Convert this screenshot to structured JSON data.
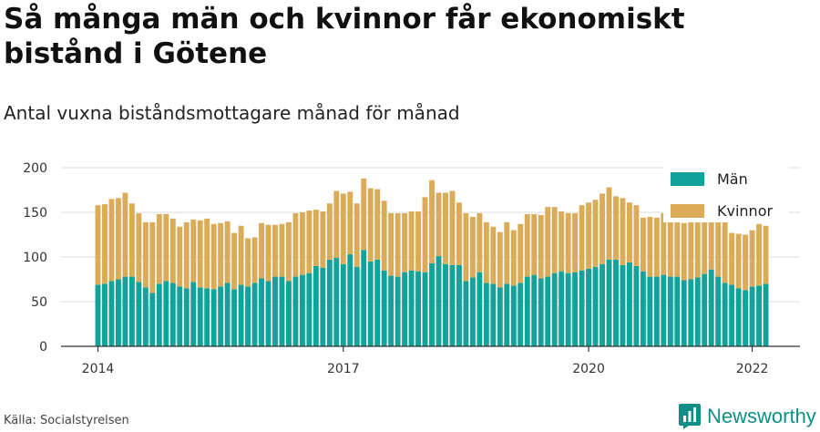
{
  "header": {
    "title": "Så många män och kvinnor får ekonomiskt bistånd i Götene",
    "subtitle": "Antal vuxna biståndsmottagare månad för månad"
  },
  "footer": {
    "source": "Källa: Socialstyrelsen",
    "brand": "Newsworthy"
  },
  "colors": {
    "man": "#11a39a",
    "kvinnor": "#dcab58",
    "grid": "#dddddd",
    "axis": "#333333",
    "brand": "#0f8f86"
  },
  "chart_data": {
    "type": "bar",
    "stacked": true,
    "x_start": "2014-01",
    "x_unit": "month",
    "ylim": [
      0,
      200
    ],
    "yticks": [
      0,
      50,
      100,
      150,
      200
    ],
    "xticks": [
      "2014",
      "2017",
      "2020",
      "2022"
    ],
    "grid": true,
    "legend_position": "top-right",
    "series": [
      {
        "name": "Män",
        "values": [
          69,
          70,
          73,
          75,
          78,
          78,
          72,
          66,
          60,
          70,
          73,
          71,
          67,
          65,
          72,
          66,
          65,
          64,
          67,
          71,
          64,
          69,
          67,
          71,
          76,
          73,
          78,
          78,
          73,
          78,
          80,
          82,
          90,
          88,
          97,
          99,
          92,
          103,
          89,
          108,
          95,
          97,
          85,
          79,
          78,
          83,
          85,
          84,
          83,
          93,
          101,
          92,
          91,
          91,
          73,
          77,
          83,
          71,
          70,
          66,
          70,
          68,
          71,
          78,
          80,
          76,
          78,
          82,
          84,
          82,
          83,
          85,
          87,
          89,
          92,
          97,
          97,
          91,
          94,
          90,
          84,
          78,
          78,
          80,
          78,
          78,
          74,
          75,
          77,
          81,
          86,
          78,
          71,
          69,
          65,
          63,
          67,
          68,
          70
        ],
        "color": "#11a39a"
      },
      {
        "name": "Kvinnor",
        "values": [
          89,
          89,
          92,
          91,
          94,
          82,
          77,
          73,
          79,
          78,
          75,
          72,
          67,
          74,
          70,
          75,
          78,
          73,
          71,
          69,
          63,
          66,
          54,
          51,
          62,
          63,
          58,
          59,
          66,
          71,
          70,
          70,
          63,
          63,
          63,
          75,
          79,
          70,
          71,
          80,
          82,
          79,
          78,
          70,
          71,
          66,
          66,
          67,
          84,
          93,
          71,
          80,
          83,
          70,
          76,
          68,
          66,
          68,
          64,
          62,
          69,
          62,
          66,
          70,
          68,
          71,
          78,
          74,
          67,
          67,
          66,
          73,
          74,
          75,
          79,
          81,
          71,
          75,
          67,
          68,
          60,
          67,
          66,
          69,
          66,
          66,
          64,
          78,
          79,
          80,
          78,
          66,
          68,
          58,
          61,
          62,
          63,
          69,
          65
        ],
        "color": "#dcab58"
      }
    ]
  }
}
